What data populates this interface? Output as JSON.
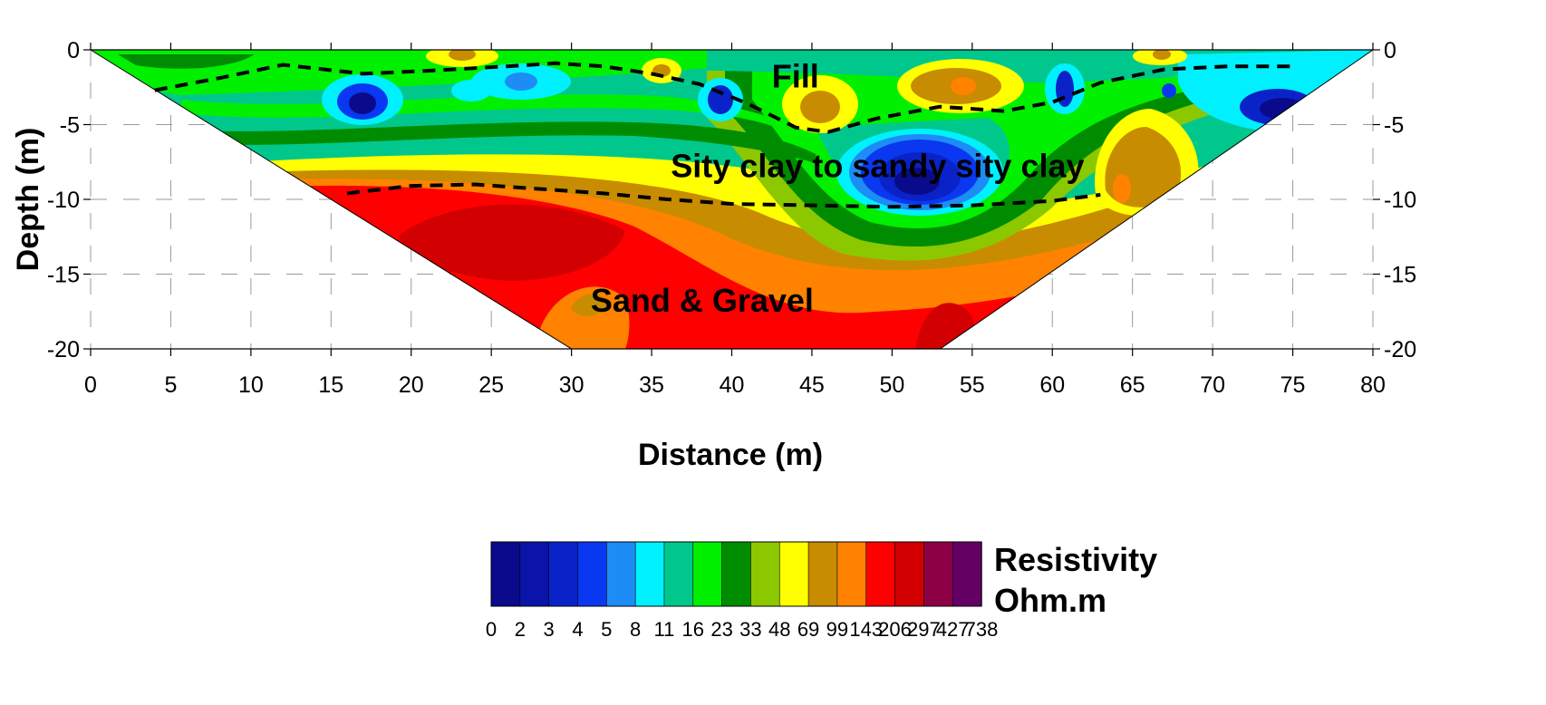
{
  "chart_data": {
    "type": "heatmap",
    "title": "",
    "xlabel": "Distance (m)",
    "ylabel": "Depth (m)",
    "xlim": [
      0,
      80
    ],
    "ylim": [
      -20,
      0
    ],
    "x_ticks": [
      0,
      5,
      10,
      15,
      20,
      25,
      30,
      35,
      40,
      45,
      50,
      55,
      60,
      65,
      70,
      75,
      80
    ],
    "y_ticks": [
      0,
      -5,
      -10,
      -15,
      -20
    ],
    "grid": true,
    "pseudosection_outline": [
      [
        0,
        0
      ],
      [
        80,
        0
      ],
      [
        53,
        -20
      ],
      [
        30,
        -20
      ]
    ],
    "colorbar": {
      "title_line1": "Resistivity",
      "title_line2": "Ohm.m",
      "levels": [
        "0",
        "2",
        "3",
        "4",
        "5",
        "8",
        "11",
        "16",
        "23",
        "33",
        "48",
        "69",
        "99",
        "143",
        "206",
        "297",
        "427",
        "738"
      ],
      "colors": [
        "#0a0a8c",
        "#0b14a8",
        "#0a23c8",
        "#0a37f0",
        "#1e8cf5",
        "#00f0ff",
        "#00c88c",
        "#00f000",
        "#008c00",
        "#8cc800",
        "#ffff00",
        "#c88c00",
        "#ff8200",
        "#ff0000",
        "#d20000",
        "#8c0046",
        "#640064"
      ]
    },
    "zones": [
      {
        "label": "Fill",
        "annotation_xy": [
          42.5,
          -2.5
        ]
      },
      {
        "label": "Sity clay to sandy sity clay",
        "annotation_xy": [
          36.2,
          -8.5
        ]
      },
      {
        "label": "Sand & Gravel",
        "annotation_xy": [
          31.2,
          -17.5
        ]
      }
    ],
    "boundaries": [
      {
        "name": "fill-base",
        "points": [
          [
            4,
            -2.7
          ],
          [
            8,
            -1.9
          ],
          [
            12,
            -1.0
          ],
          [
            17,
            -1.6
          ],
          [
            21,
            -1.4
          ],
          [
            26,
            -1.1
          ],
          [
            29,
            -0.9
          ],
          [
            32,
            -1.1
          ],
          [
            35,
            -1.6
          ],
          [
            38,
            -2.3
          ],
          [
            41,
            -3.6
          ],
          [
            44,
            -5.2
          ],
          [
            46,
            -5.5
          ],
          [
            49,
            -4.6
          ],
          [
            53,
            -3.8
          ],
          [
            57,
            -4.1
          ],
          [
            60,
            -3.5
          ],
          [
            63,
            -2.2
          ],
          [
            67,
            -1.3
          ],
          [
            71,
            -1.1
          ],
          [
            75,
            -1.1
          ]
        ]
      },
      {
        "name": "clay-base",
        "points": [
          [
            16,
            -9.6
          ],
          [
            20,
            -9.1
          ],
          [
            24,
            -9.0
          ],
          [
            28,
            -9.3
          ],
          [
            32,
            -9.6
          ],
          [
            36,
            -10.0
          ],
          [
            40,
            -10.3
          ],
          [
            45,
            -10.4
          ],
          [
            50,
            -10.5
          ],
          [
            55,
            -10.4
          ],
          [
            60,
            -10.1
          ],
          [
            63,
            -9.7
          ]
        ]
      }
    ]
  }
}
